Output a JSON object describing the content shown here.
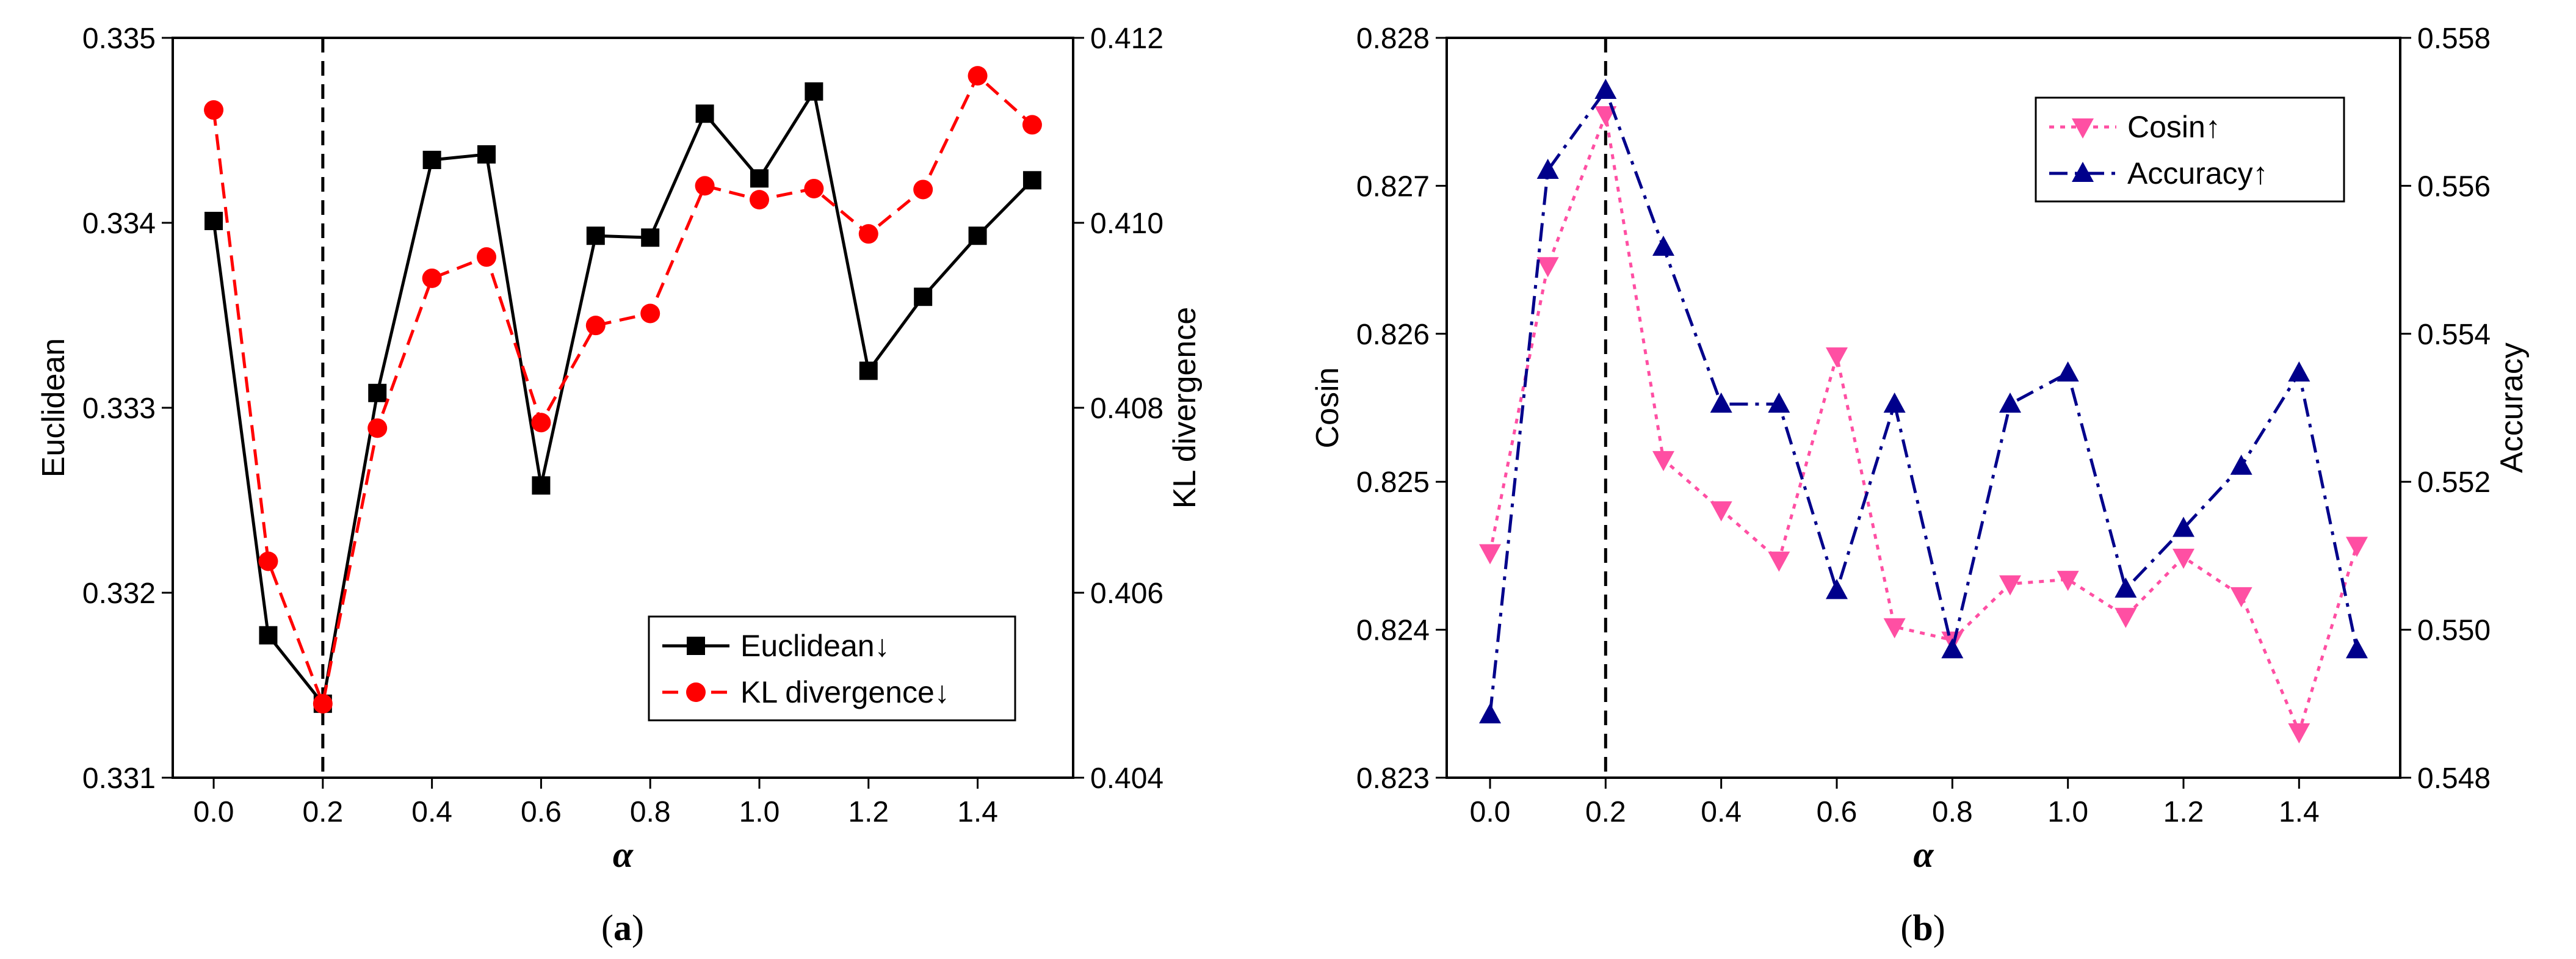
{
  "chart_data": [
    {
      "type": "line",
      "panel": "a",
      "caption_open": "(",
      "caption_letter": "a",
      "caption_close": ")",
      "x": [
        0.0,
        0.1,
        0.2,
        0.3,
        0.4,
        0.5,
        0.6,
        0.7,
        0.8,
        0.9,
        1.0,
        1.1,
        1.2,
        1.3,
        1.4,
        1.5
      ],
      "xlabel": "α",
      "xlim": [
        -0.075,
        1.575
      ],
      "xticks": [
        0.0,
        0.2,
        0.4,
        0.6,
        0.8,
        1.0,
        1.2,
        1.4
      ],
      "xtick_labels": [
        "0.0",
        "0.2",
        "0.4",
        "0.6",
        "0.8",
        "1.0",
        "1.2",
        "1.4"
      ],
      "ylabel_left": "Euclidean",
      "ylim_left": [
        0.331,
        0.335
      ],
      "yticks_left": [
        "0.331",
        "0.332",
        "0.333",
        "0.334",
        "0.335"
      ],
      "ylabel_right": "KL divergence",
      "ylim_right": [
        0.404,
        0.412
      ],
      "yticks_right": [
        "0.404",
        "0.406",
        "0.408",
        "0.410",
        "0.412"
      ],
      "vline_x": 0.2,
      "legend_position": "bottom-right",
      "series": [
        {
          "name": "Euclidean↓",
          "axis": "left",
          "color": "#000000",
          "marker": "square",
          "dash": "solid",
          "values": [
            0.33401,
            0.33177,
            0.3314,
            0.33308,
            0.33434,
            0.33437,
            0.33258,
            0.33393,
            0.33392,
            0.33459,
            0.33424,
            0.33471,
            0.3332,
            0.3336,
            0.33393,
            0.33423
          ]
        },
        {
          "name": "KL divergence↓",
          "axis": "right",
          "color": "#ff0000",
          "marker": "circle",
          "dash": "dashed",
          "values": [
            0.41122,
            0.40634,
            0.4048,
            0.40778,
            0.4094,
            0.40963,
            0.40784,
            0.40889,
            0.40902,
            0.4104,
            0.41025,
            0.41037,
            0.40988,
            0.41036,
            0.41159,
            0.41106
          ]
        }
      ]
    },
    {
      "type": "line",
      "panel": "b",
      "caption_open": "(",
      "caption_letter": "b",
      "caption_close": ")",
      "x": [
        0.0,
        0.1,
        0.2,
        0.3,
        0.4,
        0.5,
        0.6,
        0.7,
        0.8,
        0.9,
        1.0,
        1.1,
        1.2,
        1.3,
        1.4,
        1.5
      ],
      "xlabel": "α",
      "xlim": [
        -0.075,
        1.575
      ],
      "xticks": [
        0.0,
        0.2,
        0.4,
        0.6,
        0.8,
        1.0,
        1.2,
        1.4
      ],
      "xtick_labels": [
        "0.0",
        "0.2",
        "0.4",
        "0.6",
        "0.8",
        "1.0",
        "1.2",
        "1.4"
      ],
      "ylabel_left": "Cosin",
      "ylim_left": [
        0.823,
        0.828
      ],
      "yticks_left": [
        "0.823",
        "0.824",
        "0.825",
        "0.826",
        "0.827",
        "0.828"
      ],
      "ylabel_right": "Accuracy",
      "ylim_right": [
        0.548,
        0.558
      ],
      "yticks_right": [
        "0.548",
        "0.550",
        "0.552",
        "0.554",
        "0.556",
        "0.558"
      ],
      "vline_x": 0.2,
      "legend_position": "top-right",
      "series": [
        {
          "name": "Cosin↑",
          "axis": "left",
          "color": "#ff4fa3",
          "marker": "triangle-down",
          "dash": "dotted",
          "values": [
            0.82452,
            0.82646,
            0.82748,
            0.82515,
            0.82481,
            0.82447,
            0.82585,
            0.82402,
            0.82393,
            0.82431,
            0.82434,
            0.82409,
            0.82449,
            0.82423,
            0.82331,
            0.82457
          ]
        },
        {
          "name": "Accuracy↑",
          "axis": "right",
          "color": "#00008b",
          "marker": "triangle-up",
          "dash": "dashdot",
          "values": [
            0.54885,
            0.55621,
            0.55729,
            0.55517,
            0.55305,
            0.55305,
            0.55053,
            0.55305,
            0.54973,
            0.55305,
            0.55347,
            0.55055,
            0.55137,
            0.55221,
            0.55347,
            0.54973
          ]
        }
      ]
    }
  ]
}
